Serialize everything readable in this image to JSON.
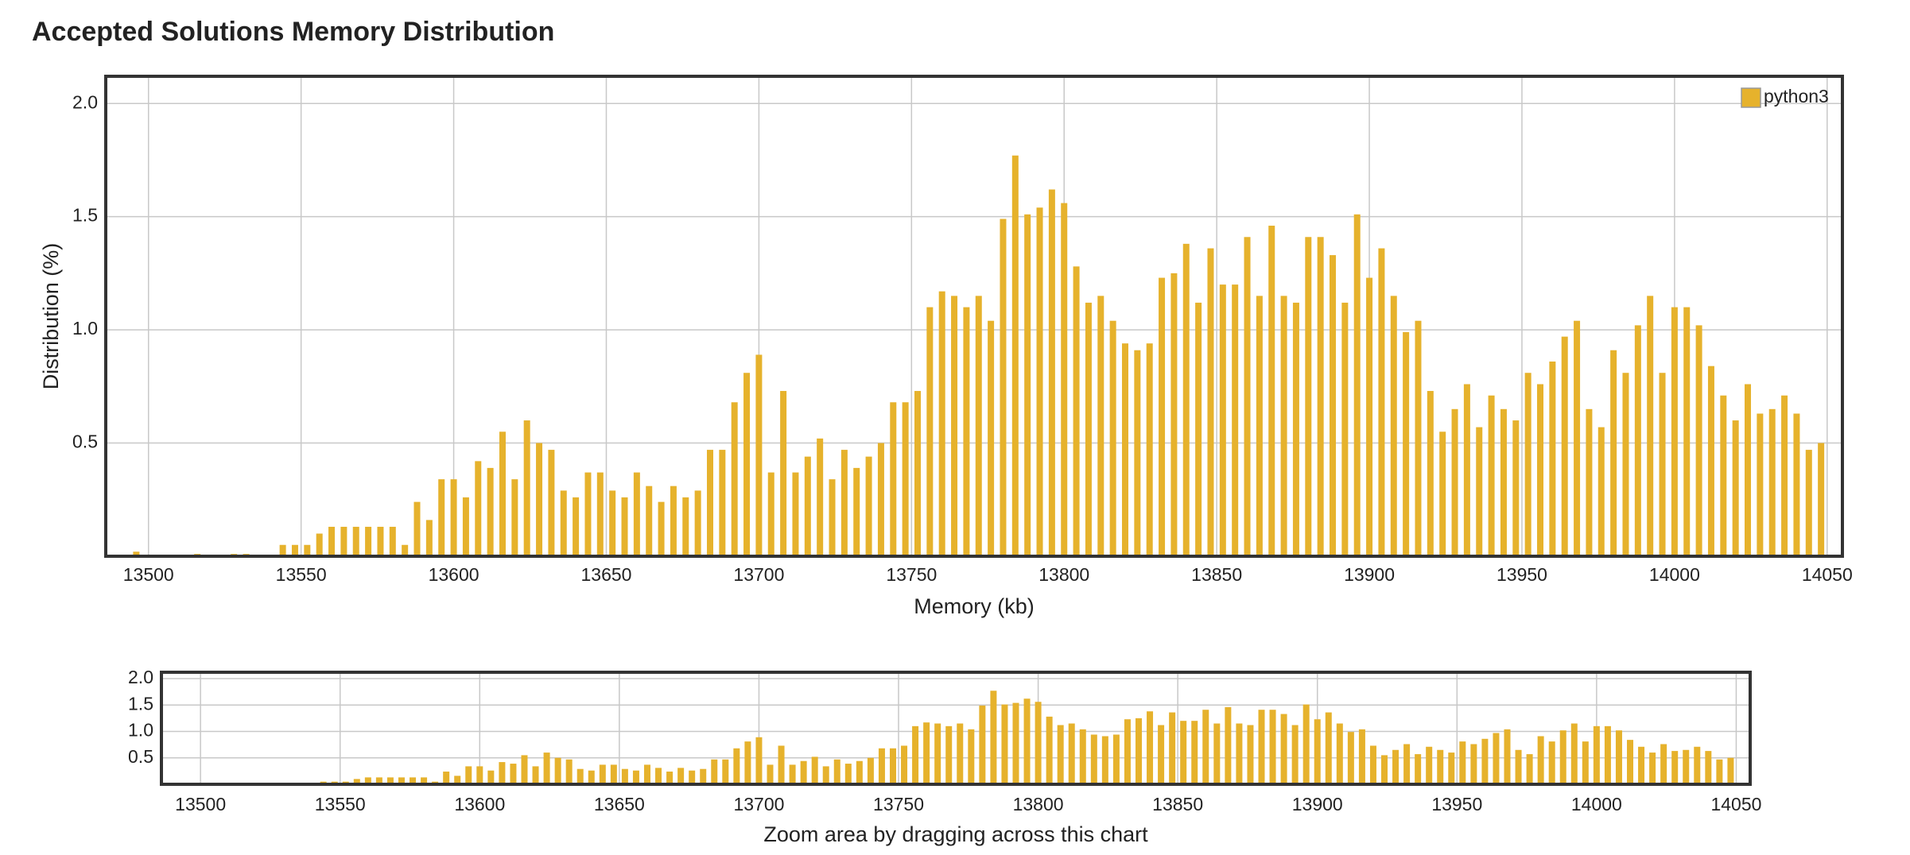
{
  "chart_data": [
    {
      "type": "bar",
      "title": "Accepted Solutions Memory Distribution",
      "xlabel": "Memory (kb)",
      "ylabel": "Distribution (%)",
      "series": [
        {
          "name": "python3",
          "color": "#e6b22c",
          "x": [
            13496,
            13516,
            13528,
            13532,
            13544,
            13548,
            13552,
            13556,
            13560,
            13564,
            13568,
            13572,
            13576,
            13580,
            13584,
            13588,
            13592,
            13596,
            13600,
            13604,
            13608,
            13612,
            13616,
            13620,
            13624,
            13628,
            13632,
            13636,
            13640,
            13644,
            13648,
            13652,
            13656,
            13660,
            13664,
            13668,
            13672,
            13676,
            13680,
            13684,
            13688,
            13692,
            13696,
            13700,
            13704,
            13708,
            13712,
            13716,
            13720,
            13724,
            13728,
            13732,
            13736,
            13740,
            13744,
            13748,
            13752,
            13756,
            13760,
            13764,
            13768,
            13772,
            13776,
            13780,
            13784,
            13788,
            13792,
            13796,
            13800,
            13804,
            13808,
            13812,
            13816,
            13820,
            13824,
            13828,
            13832,
            13836,
            13840,
            13844,
            13848,
            13852,
            13856,
            13860,
            13864,
            13868,
            13872,
            13876,
            13880,
            13884,
            13888,
            13892,
            13896,
            13900,
            13904,
            13908,
            13912,
            13916,
            13920,
            13924,
            13928,
            13932,
            13936,
            13940,
            13944,
            13948,
            13952,
            13956,
            13960,
            13964,
            13968,
            13972,
            13976,
            13980,
            13984,
            13988,
            13992,
            13996,
            14000,
            14004,
            14008,
            14012,
            14016,
            14020,
            14024,
            14028,
            14032,
            14036,
            14040,
            14044,
            14048
          ],
          "values": [
            0.02,
            0.01,
            0.01,
            0.01,
            0.05,
            0.05,
            0.05,
            0.1,
            0.13,
            0.13,
            0.13,
            0.13,
            0.13,
            0.13,
            0.05,
            0.24,
            0.16,
            0.34,
            0.34,
            0.26,
            0.42,
            0.39,
            0.55,
            0.34,
            0.6,
            0.5,
            0.47,
            0.29,
            0.26,
            0.37,
            0.37,
            0.29,
            0.26,
            0.37,
            0.31,
            0.24,
            0.31,
            0.26,
            0.29,
            0.47,
            0.47,
            0.68,
            0.81,
            0.89,
            0.37,
            0.73,
            0.37,
            0.44,
            0.52,
            0.34,
            0.47,
            0.39,
            0.44,
            0.5,
            0.68,
            0.68,
            0.73,
            1.1,
            1.17,
            1.15,
            1.1,
            1.15,
            1.04,
            1.49,
            1.77,
            1.51,
            1.54,
            1.62,
            1.56,
            1.28,
            1.12,
            1.15,
            1.04,
            0.94,
            0.91,
            0.94,
            1.23,
            1.25,
            1.38,
            1.12,
            1.36,
            1.2,
            1.2,
            1.41,
            1.15,
            1.46,
            1.15,
            1.12,
            1.41,
            1.41,
            1.33,
            1.12,
            1.51,
            1.23,
            1.36,
            1.15,
            0.99,
            1.04,
            0.73,
            0.55,
            0.65,
            0.76,
            0.57,
            0.71,
            0.65,
            0.6,
            0.81,
            0.76,
            0.86,
            0.97,
            1.04,
            0.65,
            0.57,
            0.91,
            0.81,
            1.02,
            1.15,
            0.81,
            1.1,
            1.1,
            1.02,
            0.84,
            0.71,
            0.6,
            0.76,
            0.63,
            0.65,
            0.71,
            0.63,
            0.47,
            0.5
          ]
        }
      ],
      "xlim": [
        13486,
        14055
      ],
      "xticks": [
        13500,
        13550,
        13600,
        13650,
        13700,
        13750,
        13800,
        13850,
        13900,
        13950,
        14000,
        14050
      ],
      "ylim": [
        0,
        2.12
      ],
      "yticks": [
        0.5,
        {
          "value": 1,
          "label": "1.0"
        },
        1.5,
        {
          "value": 2,
          "label": "2.0"
        }
      ],
      "grid": true,
      "legend": "top-right"
    },
    {
      "type": "bar",
      "xlabel": "Zoom area by dragging across this chart",
      "xlim": [
        13486,
        14055
      ],
      "xticks": [
        13500,
        13550,
        13600,
        13650,
        13700,
        13750,
        13800,
        13850,
        13900,
        13950,
        14000,
        14050
      ],
      "ylim": [
        0,
        2.12
      ],
      "yticks": [
        0.5,
        {
          "value": 1,
          "label": "1.0"
        },
        1.5,
        {
          "value": 2,
          "label": "2.0"
        }
      ],
      "grid": true
    }
  ]
}
